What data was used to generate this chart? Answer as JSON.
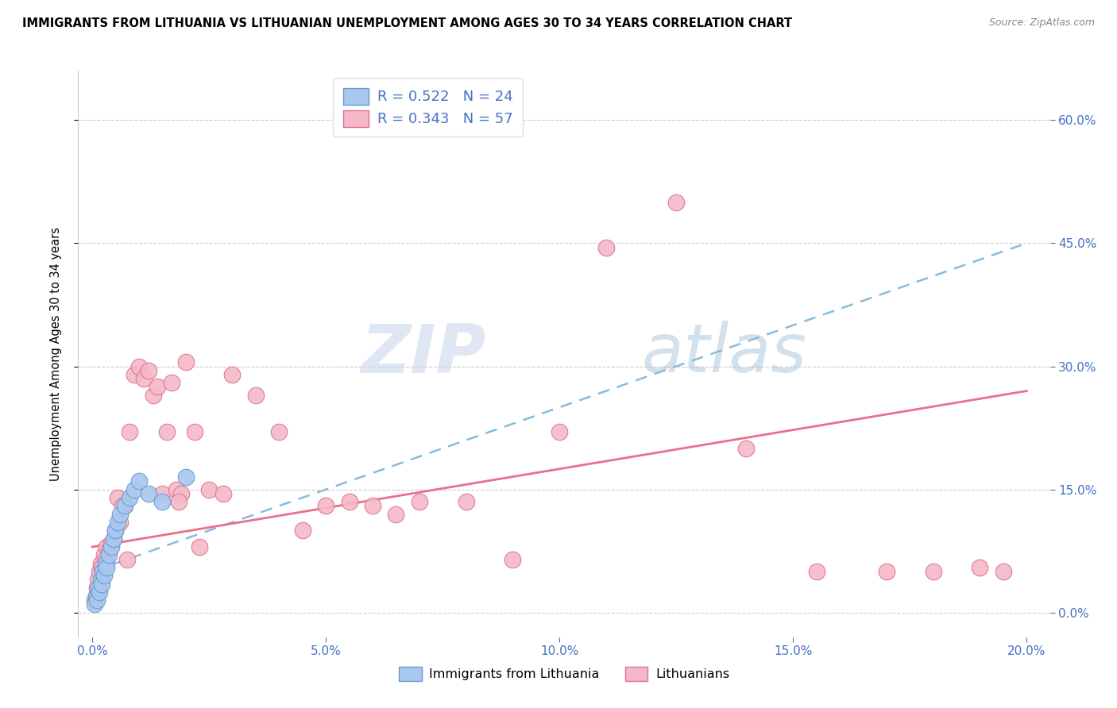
{
  "title": "IMMIGRANTS FROM LITHUANIA VS LITHUANIAN UNEMPLOYMENT AMONG AGES 30 TO 34 YEARS CORRELATION CHART",
  "source": "Source: ZipAtlas.com",
  "xlabel_ticks": [
    "0.0%",
    "5.0%",
    "10.0%",
    "15.0%",
    "20.0%"
  ],
  "xlabel_vals": [
    0.0,
    5.0,
    10.0,
    15.0,
    20.0
  ],
  "ylabel_ticks": [
    "0.0%",
    "15.0%",
    "30.0%",
    "45.0%",
    "60.0%"
  ],
  "ylabel_vals": [
    0.0,
    15.0,
    30.0,
    45.0,
    60.0
  ],
  "xlim": [
    -0.3,
    20.5
  ],
  "ylim": [
    -3.0,
    66.0
  ],
  "watermark_zip": "ZIP",
  "watermark_atlas": "atlas",
  "legend_r1": "R = 0.522",
  "legend_n1": "N = 24",
  "legend_r2": "R = 0.343",
  "legend_n2": "N = 57",
  "legend_label1": "Immigrants from Lithuania",
  "legend_label2": "Lithuanians",
  "blue_color": "#A8C8F0",
  "pink_color": "#F5B8C8",
  "blue_edge": "#6699CC",
  "pink_edge": "#E07090",
  "trend_blue_color": "#88BBDD",
  "trend_pink_color": "#E8708A",
  "blue_scatter_x": [
    0.05,
    0.08,
    0.1,
    0.12,
    0.15,
    0.18,
    0.2,
    0.22,
    0.25,
    0.28,
    0.3,
    0.35,
    0.4,
    0.45,
    0.5,
    0.55,
    0.6,
    0.7,
    0.8,
    0.9,
    1.0,
    1.2,
    1.5,
    2.0
  ],
  "blue_scatter_y": [
    1.0,
    2.0,
    1.5,
    3.0,
    2.5,
    4.0,
    3.5,
    5.0,
    4.5,
    6.0,
    5.5,
    7.0,
    8.0,
    9.0,
    10.0,
    11.0,
    12.0,
    13.0,
    14.0,
    15.0,
    16.0,
    14.5,
    13.5,
    16.5
  ],
  "pink_scatter_x": [
    0.05,
    0.08,
    0.1,
    0.12,
    0.15,
    0.18,
    0.2,
    0.25,
    0.28,
    0.3,
    0.35,
    0.4,
    0.45,
    0.5,
    0.55,
    0.6,
    0.7,
    0.8,
    0.9,
    1.0,
    1.1,
    1.2,
    1.3,
    1.4,
    1.5,
    1.6,
    1.7,
    1.8,
    1.9,
    2.0,
    2.2,
    2.5,
    2.8,
    3.0,
    3.5,
    4.0,
    4.5,
    5.0,
    5.5,
    6.0,
    6.5,
    7.0,
    8.0,
    9.0,
    10.0,
    11.0,
    12.5,
    14.0,
    15.5,
    17.0,
    18.0,
    19.0,
    19.5,
    2.3,
    0.65,
    0.75,
    1.85
  ],
  "pink_scatter_y": [
    1.5,
    2.0,
    3.0,
    4.0,
    5.0,
    6.0,
    5.5,
    7.0,
    6.5,
    8.0,
    7.5,
    8.5,
    9.0,
    10.0,
    14.0,
    11.0,
    13.0,
    22.0,
    29.0,
    30.0,
    28.5,
    29.5,
    26.5,
    27.5,
    14.5,
    22.0,
    28.0,
    15.0,
    14.5,
    30.5,
    22.0,
    15.0,
    14.5,
    29.0,
    26.5,
    22.0,
    10.0,
    13.0,
    13.5,
    13.0,
    12.0,
    13.5,
    13.5,
    6.5,
    22.0,
    44.5,
    50.0,
    20.0,
    5.0,
    5.0,
    5.0,
    5.5,
    5.0,
    8.0,
    13.0,
    6.5,
    13.5
  ],
  "trend_blue_x0": 0.0,
  "trend_blue_y0": 5.0,
  "trend_blue_x1": 20.0,
  "trend_blue_y1": 45.0,
  "trend_pink_x0": 0.0,
  "trend_pink_y0": 8.0,
  "trend_pink_x1": 20.0,
  "trend_pink_y1": 27.0
}
